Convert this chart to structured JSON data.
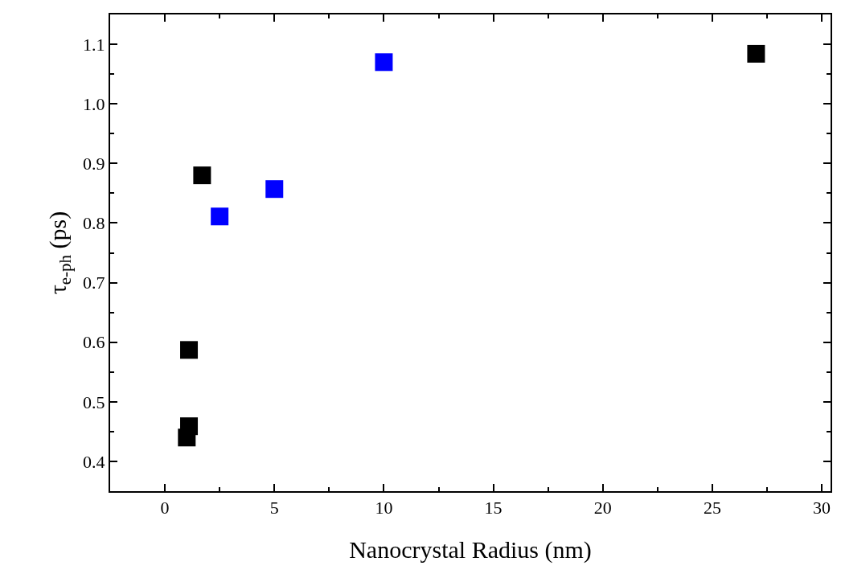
{
  "chart_data": {
    "type": "scatter",
    "xlabel": "Nanocrystal Radius (nm)",
    "ylabel": "τ$_{e-ph}$ (ps)",
    "xlim": [
      -2.5,
      30.4
    ],
    "xticks": [
      0,
      5,
      10,
      15,
      20,
      25,
      30
    ],
    "ylim": [
      0.35,
      1.15
    ],
    "yticks": [
      {
        "value": 0.4,
        "label": "0.4"
      },
      {
        "value": 0.5,
        "label": "0.5"
      },
      {
        "value": 0.6,
        "label": "0.6"
      },
      {
        "value": 0.7,
        "label": "0.7"
      },
      {
        "value": 0.8,
        "label": "0.8"
      },
      {
        "value": 0.9,
        "label": "0.9"
      },
      {
        "value": 1.0,
        "label": "1.0"
      },
      {
        "value": 1.1,
        "label": "1.1"
      }
    ],
    "marker": "square",
    "series": [
      {
        "color": "#000000",
        "x": [
          27,
          1.7,
          1.1,
          1.1,
          1.0
        ],
        "values": [
          1.084,
          0.88,
          0.587,
          0.459,
          0.44
        ]
      },
      {
        "color": "#0000ff",
        "x": [
          10,
          5,
          2.5
        ],
        "values": [
          1.07,
          0.857,
          0.811
        ]
      }
    ]
  }
}
